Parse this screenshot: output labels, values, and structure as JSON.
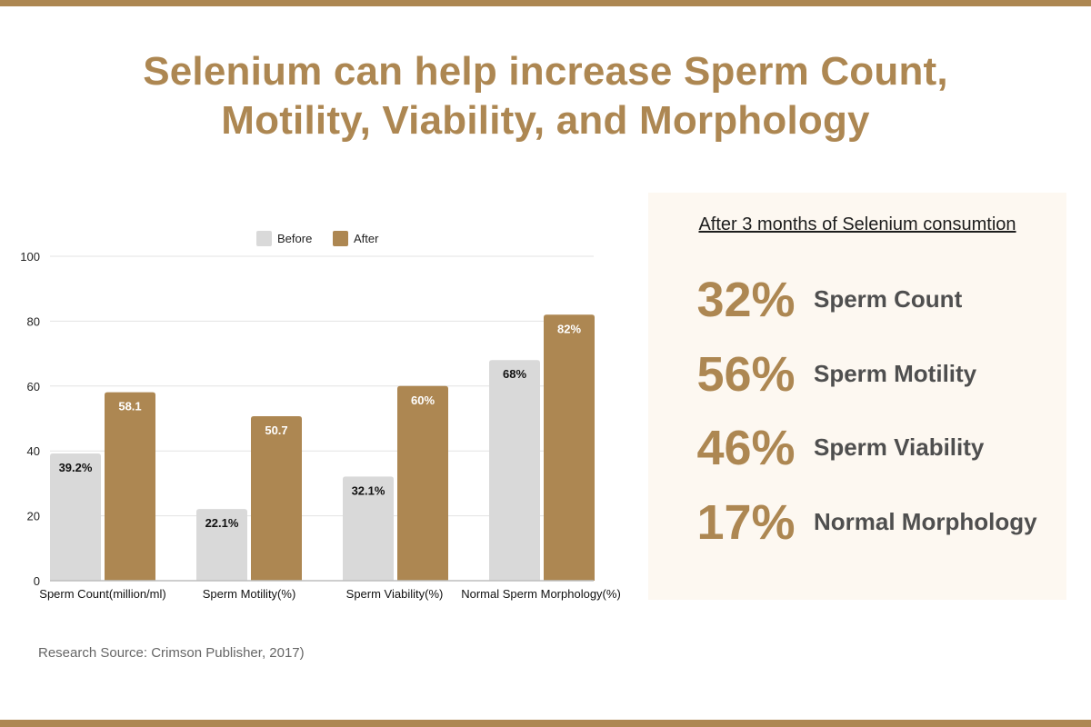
{
  "title": {
    "line1": "Selenium can help increase Sperm Count,",
    "line2": "Motility, Viability, and Morphology"
  },
  "colors": {
    "accent": "#ad8752",
    "before": "#d9d9d9",
    "grid": "#e3e3e3",
    "panel_bg": "#fdf8f1"
  },
  "chart_data": {
    "type": "bar",
    "categories": [
      "Sperm Count(million/ml)",
      "Sperm Motility(%)",
      "Sperm Viability(%)",
      "Normal Sperm Morphology(%)"
    ],
    "series": [
      {
        "name": "Before",
        "values": [
          39.2,
          22.1,
          32.1,
          68
        ],
        "labels": [
          "39.2%",
          "22.1%",
          "32.1%",
          "68%"
        ]
      },
      {
        "name": "After",
        "values": [
          58.1,
          50.7,
          60,
          82
        ],
        "labels": [
          "58.1",
          "50.7",
          "60%",
          "82%"
        ]
      }
    ],
    "yticks": [
      "0",
      "20",
      "40",
      "60",
      "80",
      "100"
    ],
    "ylim": [
      0,
      100
    ],
    "legend_position": "top-center",
    "grid": true
  },
  "panel": {
    "heading": "After 3 months of Selenium consumtion",
    "stats": [
      {
        "value": "32%",
        "label": "Sperm Count"
      },
      {
        "value": "56%",
        "label": "Sperm Motility"
      },
      {
        "value": "46%",
        "label": "Sperm Viability"
      },
      {
        "value": "17%",
        "label": "Normal Morphology"
      }
    ]
  },
  "source": "Research Source: Crimson Publisher, 2017)"
}
